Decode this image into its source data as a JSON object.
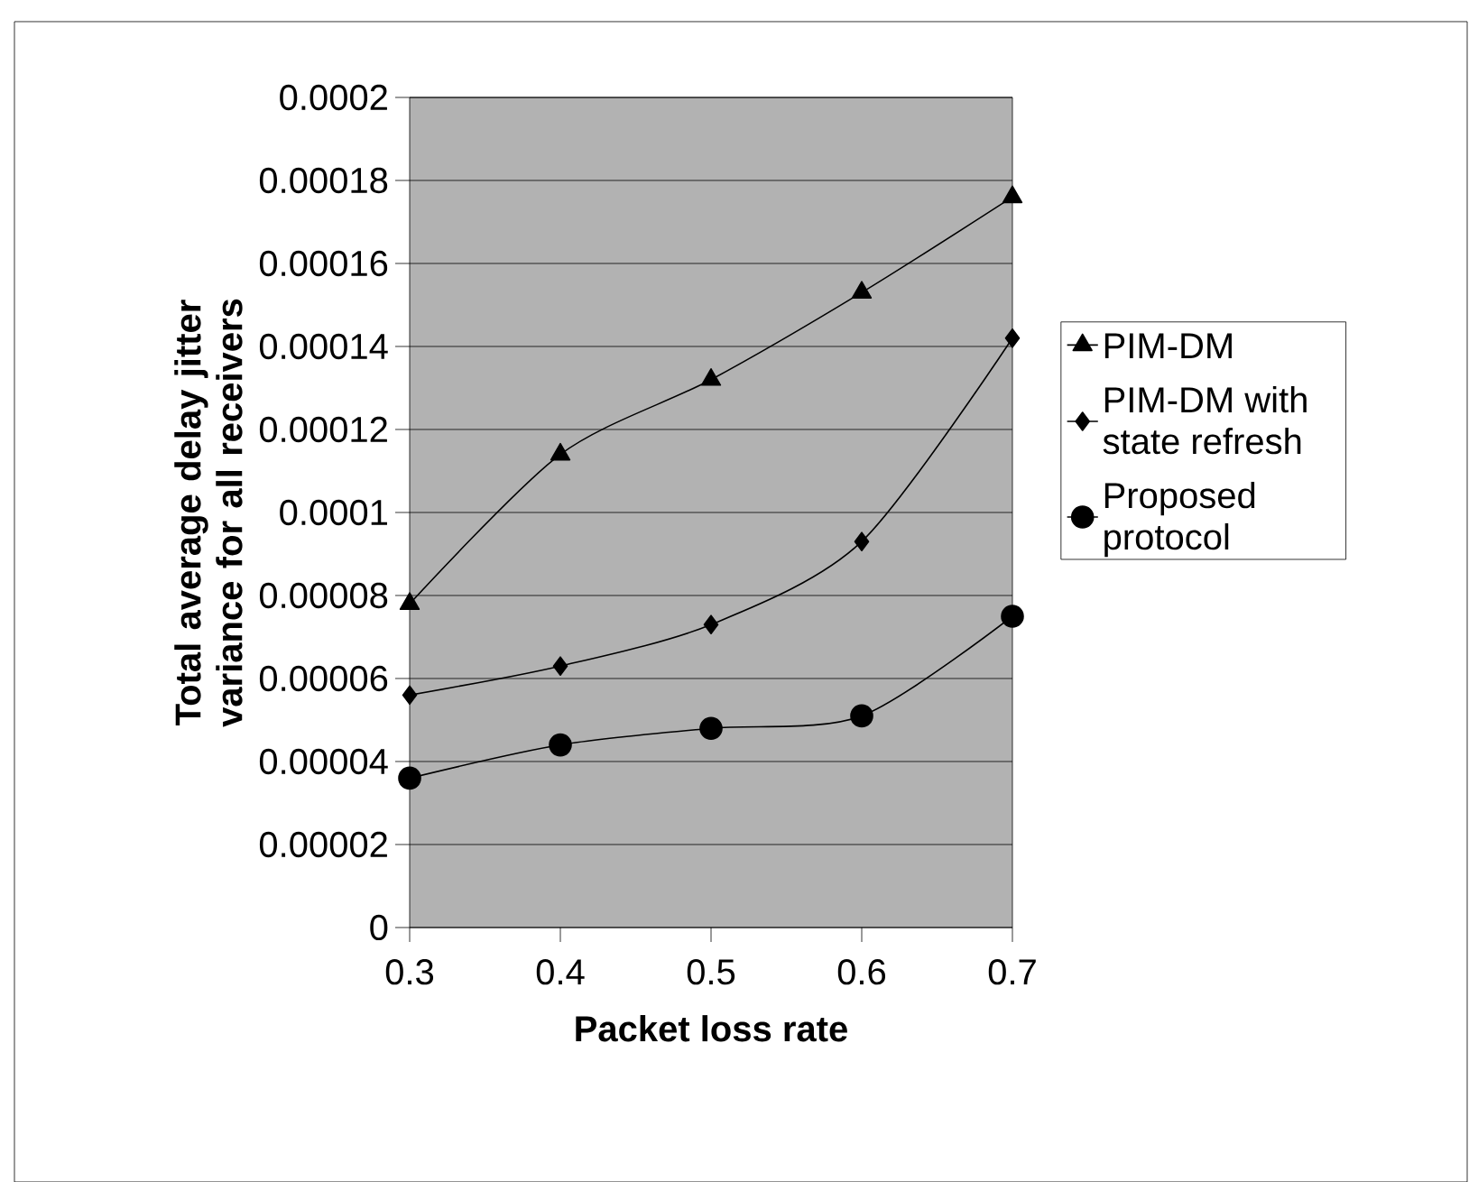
{
  "chart_data": {
    "type": "line",
    "xlabel": "Packet loss rate",
    "ylabel": "Total average delay jitter variance for all receivers",
    "x": [
      0.3,
      0.4,
      0.5,
      0.6,
      0.7
    ],
    "xlim": [
      0.3,
      0.7
    ],
    "xticks": [
      0.3,
      0.4,
      0.5,
      0.6,
      0.7
    ],
    "ylim": [
      0,
      0.0002
    ],
    "yticks": [
      0,
      {
        "value": 2e-05,
        "label": "0.00002"
      },
      {
        "value": 4e-05,
        "label": "0.00004"
      },
      {
        "value": 6e-05,
        "label": "0.00006"
      },
      {
        "value": 8e-05,
        "label": "0.00008"
      },
      {
        "value": 0.0001,
        "label": "0.0001"
      },
      {
        "value": 0.00012,
        "label": "0.00012"
      },
      {
        "value": 0.00014,
        "label": "0.00014"
      },
      {
        "value": 0.00016,
        "label": "0.00016"
      },
      {
        "value": 0.00018,
        "label": "0.00018"
      },
      {
        "value": 0.0002,
        "label": "0.0002"
      }
    ],
    "grid": "y",
    "legend": "right",
    "line_style": "solid",
    "series": [
      {
        "name": "PIM-DM",
        "color": "#000000",
        "marker": "triangle",
        "values": [
          7.8e-05,
          0.000114,
          0.000132,
          0.000153,
          0.000176
        ]
      },
      {
        "name": "PIM-DM with state refresh",
        "color": "#000000",
        "marker": "diamond",
        "values": [
          5.6e-05,
          6.3e-05,
          7.3e-05,
          9.3e-05,
          0.000142
        ]
      },
      {
        "name": "Proposed protocol",
        "color": "#000000",
        "marker": "circle",
        "values": [
          3.6e-05,
          4.4e-05,
          4.8e-05,
          5.1e-05,
          7.5e-05
        ]
      }
    ]
  }
}
